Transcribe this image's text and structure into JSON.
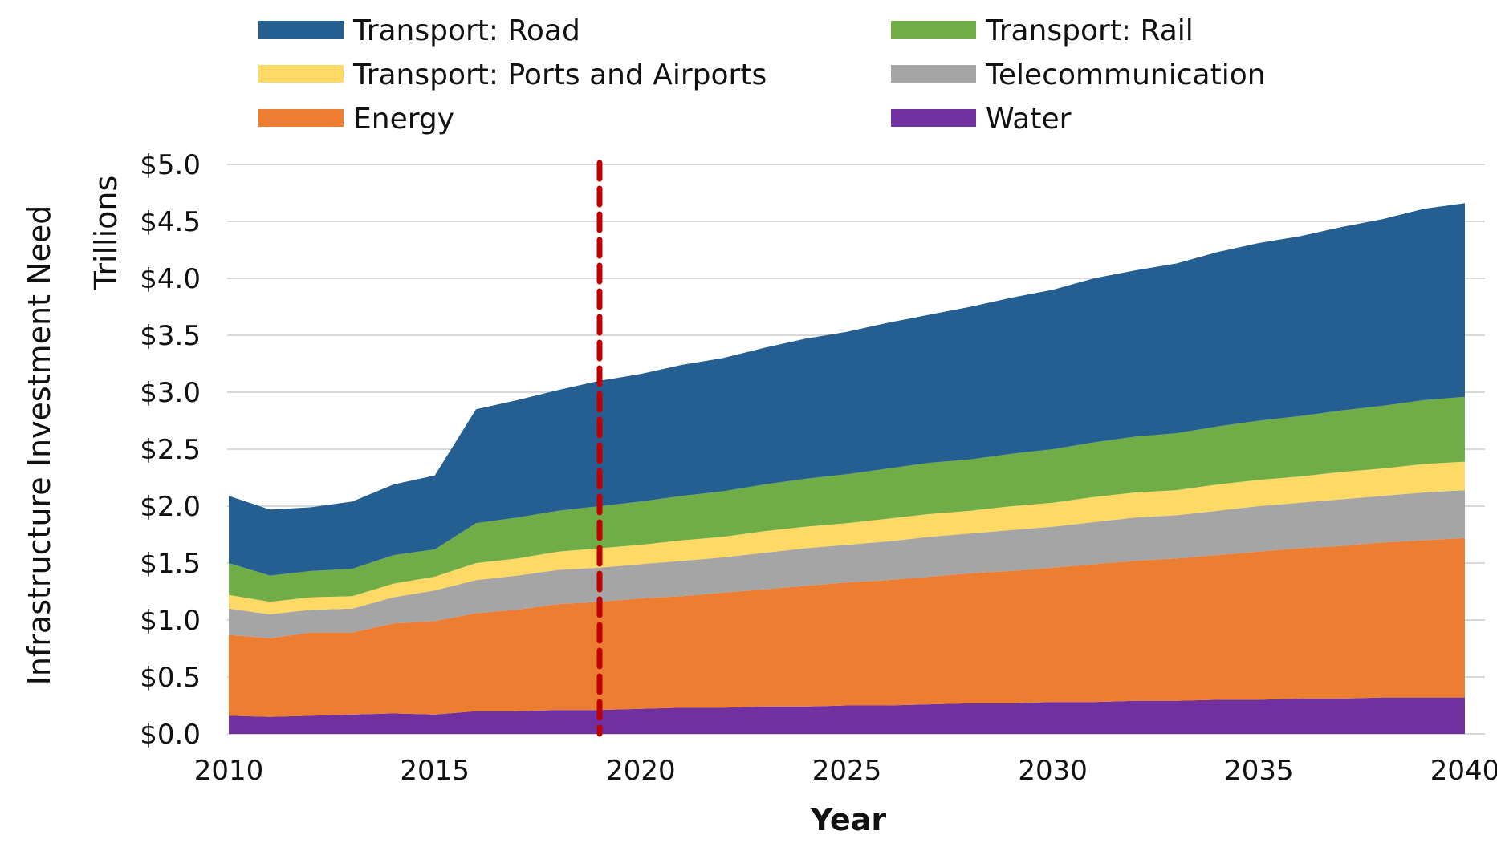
{
  "chart_data": {
    "type": "area",
    "stacked": true,
    "title": "",
    "xlabel": "Year",
    "ylabel": "Infrastructure Investment Need",
    "ylabel_secondary": "Trillions",
    "xlim": [
      2010,
      2040
    ],
    "ylim": [
      0,
      5
    ],
    "x_ticks": [
      "2010",
      "2015",
      "2020",
      "2025",
      "2030",
      "2035",
      "2040"
    ],
    "y_ticks": [
      "$0.0",
      "$0.5",
      "$1.0",
      "$1.5",
      "$2.0",
      "$2.5",
      "$3.0",
      "$3.5",
      "$4.0",
      "$4.5",
      "$5.0"
    ],
    "grid": "horizontal",
    "legend_position": "top",
    "reference_line": {
      "x": 2019,
      "color": "#c00000",
      "style": "dashed"
    },
    "x": [
      2010,
      2011,
      2012,
      2013,
      2014,
      2015,
      2016,
      2017,
      2018,
      2019,
      2020,
      2021,
      2022,
      2023,
      2024,
      2025,
      2026,
      2027,
      2028,
      2029,
      2030,
      2031,
      2032,
      2033,
      2034,
      2035,
      2036,
      2037,
      2038,
      2039,
      2040
    ],
    "series": [
      {
        "name": "Water",
        "color": "#7030a0",
        "values": [
          0.16,
          0.15,
          0.16,
          0.17,
          0.18,
          0.17,
          0.2,
          0.2,
          0.21,
          0.21,
          0.22,
          0.23,
          0.23,
          0.24,
          0.24,
          0.25,
          0.25,
          0.26,
          0.27,
          0.27,
          0.28,
          0.28,
          0.29,
          0.29,
          0.3,
          0.3,
          0.31,
          0.31,
          0.32,
          0.32,
          0.32
        ]
      },
      {
        "name": "Energy",
        "color": "#ed7d31",
        "values": [
          0.71,
          0.69,
          0.73,
          0.72,
          0.79,
          0.82,
          0.86,
          0.89,
          0.93,
          0.95,
          0.97,
          0.98,
          1.01,
          1.03,
          1.06,
          1.08,
          1.1,
          1.12,
          1.14,
          1.16,
          1.18,
          1.21,
          1.23,
          1.25,
          1.27,
          1.3,
          1.32,
          1.34,
          1.36,
          1.38,
          1.4
        ]
      },
      {
        "name": "Telecommunication",
        "color": "#a5a5a5",
        "values": [
          0.23,
          0.21,
          0.2,
          0.21,
          0.23,
          0.27,
          0.29,
          0.3,
          0.3,
          0.3,
          0.3,
          0.31,
          0.31,
          0.32,
          0.33,
          0.33,
          0.34,
          0.35,
          0.35,
          0.36,
          0.36,
          0.37,
          0.38,
          0.38,
          0.39,
          0.4,
          0.4,
          0.41,
          0.41,
          0.42,
          0.42
        ]
      },
      {
        "name": "Transport: Ports and Airports",
        "color": "#ffd966",
        "values": [
          0.12,
          0.11,
          0.11,
          0.11,
          0.12,
          0.12,
          0.15,
          0.15,
          0.16,
          0.17,
          0.17,
          0.18,
          0.18,
          0.19,
          0.19,
          0.19,
          0.2,
          0.2,
          0.2,
          0.21,
          0.21,
          0.22,
          0.22,
          0.22,
          0.23,
          0.23,
          0.23,
          0.24,
          0.24,
          0.25,
          0.25
        ]
      },
      {
        "name": "Transport: Rail",
        "color": "#70ad47",
        "values": [
          0.28,
          0.23,
          0.23,
          0.24,
          0.25,
          0.24,
          0.35,
          0.36,
          0.36,
          0.37,
          0.38,
          0.39,
          0.4,
          0.41,
          0.42,
          0.43,
          0.44,
          0.45,
          0.45,
          0.46,
          0.47,
          0.48,
          0.49,
          0.5,
          0.51,
          0.52,
          0.53,
          0.54,
          0.55,
          0.56,
          0.57
        ]
      },
      {
        "name": "Transport: Road",
        "color": "#255e91",
        "values": [
          0.59,
          0.58,
          0.56,
          0.59,
          0.62,
          0.65,
          1.0,
          1.03,
          1.06,
          1.1,
          1.12,
          1.15,
          1.17,
          1.2,
          1.23,
          1.25,
          1.28,
          1.3,
          1.34,
          1.37,
          1.4,
          1.44,
          1.46,
          1.49,
          1.53,
          1.56,
          1.58,
          1.61,
          1.64,
          1.68,
          1.7
        ]
      }
    ]
  },
  "legend": {
    "items": [
      {
        "label": "Transport: Road",
        "color": "#255e91"
      },
      {
        "label": "Transport: Rail",
        "color": "#70ad47"
      },
      {
        "label": "Transport: Ports and Airports",
        "color": "#ffd966"
      },
      {
        "label": "Telecommunication",
        "color": "#a5a5a5"
      },
      {
        "label": "Energy",
        "color": "#ed7d31"
      },
      {
        "label": "Water",
        "color": "#7030a0"
      }
    ]
  }
}
